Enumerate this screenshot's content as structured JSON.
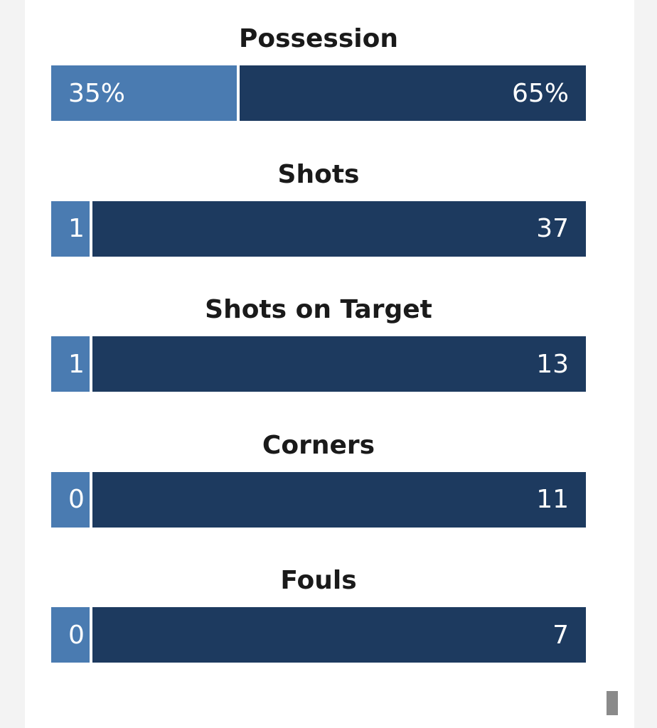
{
  "stats": [
    {
      "title": "Possession",
      "home": 35,
      "away": 65,
      "home_label": "35%",
      "away_label": "65%"
    },
    {
      "title": "Shots",
      "home": 1,
      "away": 37
    },
    {
      "title": "Shots on Target",
      "home": 1,
      "away": 13
    },
    {
      "title": "Corners",
      "home": 0,
      "away": 11
    },
    {
      "title": "Fouls",
      "home": 0,
      "away": 7
    }
  ]
}
